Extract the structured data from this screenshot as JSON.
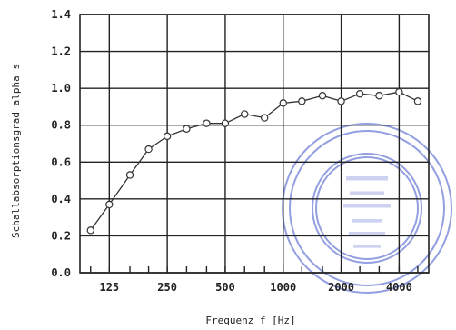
{
  "chart_data": {
    "type": "line",
    "title": "",
    "xlabel": "Frequenz f [Hz]",
    "ylabel": "Schallabsorptionsgrad alpha s",
    "x_scale": "log",
    "x_ticks": [
      "125",
      "250",
      "500",
      "1000",
      "2000",
      "4000"
    ],
    "y_ticks": [
      "0.0",
      "0.2",
      "0.4",
      "0.6",
      "0.8",
      "1.0",
      "1.2",
      "1.4"
    ],
    "ylim": [
      0,
      1.4
    ],
    "xlim": [
      88,
      5700
    ],
    "grid": true,
    "series": [
      {
        "x": [
          100,
          125,
          160,
          200,
          250,
          315,
          400,
          500,
          630,
          800,
          1000,
          1250,
          1600,
          2000,
          2500,
          3150,
          4000,
          5000
        ],
        "values": [
          0.23,
          0.37,
          0.53,
          0.67,
          0.74,
          0.78,
          0.81,
          0.81,
          0.86,
          0.84,
          0.92,
          0.93,
          0.96,
          0.93,
          0.97,
          0.96,
          0.98,
          0.93
        ]
      }
    ]
  },
  "colors": {
    "line": "#333333",
    "grid": "#222222",
    "stamp": "#6f7fd6"
  }
}
